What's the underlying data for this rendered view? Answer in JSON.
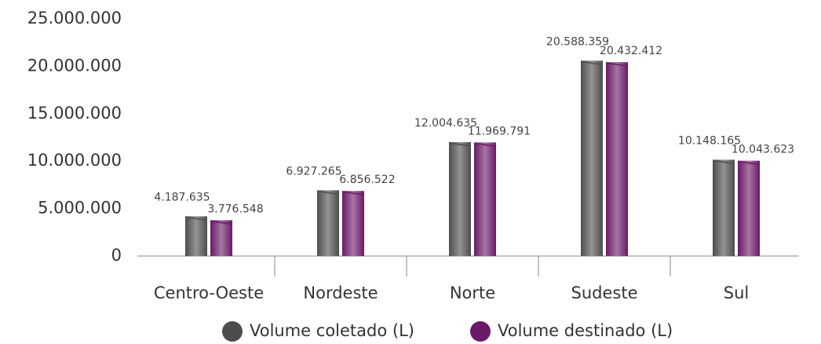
{
  "chart_data": {
    "type": "bar",
    "categories": [
      "Centro-Oeste",
      "Nordeste",
      "Norte",
      "Sudeste",
      "Sul"
    ],
    "series": [
      {
        "name": "Volume coletado (L)",
        "color": "#4d4d4d",
        "values": [
          4187635,
          6927265,
          12004635,
          20588359,
          10148165
        ],
        "value_labels": [
          "4.187.635",
          "6.927.265",
          "12.004.635",
          "20.588.359",
          "10.148.165"
        ]
      },
      {
        "name": "Volume destinado (L)",
        "color": "#6a1a66",
        "values": [
          3776548,
          6856522,
          11969791,
          20432412,
          10043623
        ],
        "value_labels": [
          "3.776.548",
          "6.856.522",
          "11.969.791",
          "20.432.412",
          "10.043.623"
        ]
      }
    ],
    "ylim": [
      0,
      25000000
    ],
    "yticks": [
      0,
      {
        "value": 5000000,
        "label": "5.000.000"
      },
      {
        "value": 10000000,
        "label": "10.000.000"
      },
      {
        "value": 15000000,
        "label": "15.000.000"
      },
      {
        "value": 20000000,
        "label": "20.000.000"
      },
      {
        "value": 25000000,
        "label": "25.000.000"
      }
    ],
    "grid": false
  }
}
